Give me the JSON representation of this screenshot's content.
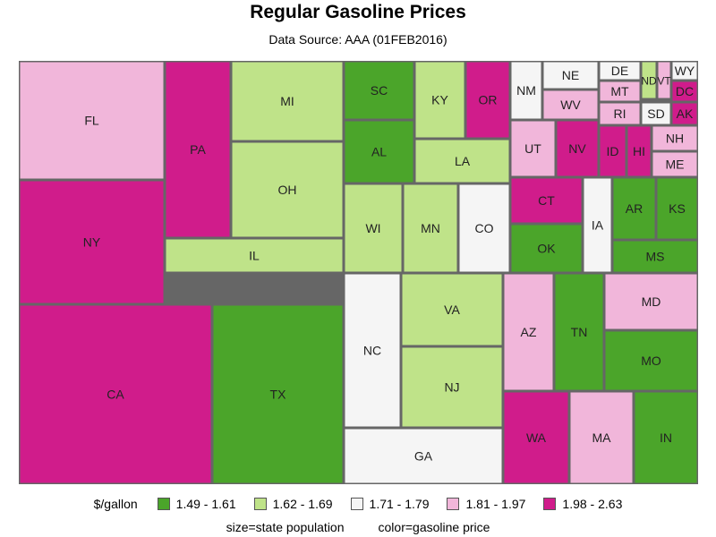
{
  "chart_data": {
    "type": "treemap",
    "title": "Regular Gasoline Prices",
    "subtitle": "Data Source: AAA (01FEB2016)",
    "legend": {
      "title": "$/gallon",
      "position": "bottom",
      "items": [
        {
          "label": "1.49 - 1.61",
          "color": "#4ba52a"
        },
        {
          "label": "1.62 - 1.69",
          "color": "#bfe389"
        },
        {
          "label": "1.71 - 1.79",
          "color": "#f5f5f5"
        },
        {
          "label": "1.81 - 1.97",
          "color": "#f1b6da"
        },
        {
          "label": "1.98 - 2.63",
          "color": "#d01c8b"
        }
      ]
    },
    "footnote": [
      "size=state population",
      "color=gasoline price"
    ],
    "tiles": [
      {
        "state": "FL",
        "price_bin": 3
      },
      {
        "state": "NY",
        "price_bin": 4
      },
      {
        "state": "CA",
        "price_bin": 4
      },
      {
        "state": "PA",
        "price_bin": 4
      },
      {
        "state": "MI",
        "price_bin": 1
      },
      {
        "state": "OH",
        "price_bin": 1
      },
      {
        "state": "IL",
        "price_bin": 1
      },
      {
        "state": "TX",
        "price_bin": 0
      },
      {
        "state": "SC",
        "price_bin": 0
      },
      {
        "state": "AL",
        "price_bin": 0
      },
      {
        "state": "KY",
        "price_bin": 1
      },
      {
        "state": "LA",
        "price_bin": 1
      },
      {
        "state": "OR",
        "price_bin": 4
      },
      {
        "state": "WI",
        "price_bin": 1
      },
      {
        "state": "MN",
        "price_bin": 1
      },
      {
        "state": "CO",
        "price_bin": 2
      },
      {
        "state": "NC",
        "price_bin": 2
      },
      {
        "state": "VA",
        "price_bin": 1
      },
      {
        "state": "NJ",
        "price_bin": 1
      },
      {
        "state": "GA",
        "price_bin": 2
      },
      {
        "state": "NM",
        "price_bin": 2
      },
      {
        "state": "NE",
        "price_bin": 2
      },
      {
        "state": "WV",
        "price_bin": 3
      },
      {
        "state": "DE",
        "price_bin": 2
      },
      {
        "state": "MT",
        "price_bin": 3
      },
      {
        "state": "RI",
        "price_bin": 3
      },
      {
        "state": "ND",
        "price_bin": 1
      },
      {
        "state": "VT",
        "price_bin": 3
      },
      {
        "state": "WY",
        "price_bin": 2
      },
      {
        "state": "DC",
        "price_bin": 4
      },
      {
        "state": "SD",
        "price_bin": 2
      },
      {
        "state": "AK",
        "price_bin": 4
      },
      {
        "state": "UT",
        "price_bin": 3
      },
      {
        "state": "NV",
        "price_bin": 4
      },
      {
        "state": "ID",
        "price_bin": 4
      },
      {
        "state": "HI",
        "price_bin": 4
      },
      {
        "state": "NH",
        "price_bin": 3
      },
      {
        "state": "ME",
        "price_bin": 3
      },
      {
        "state": "CT",
        "price_bin": 4
      },
      {
        "state": "IA",
        "price_bin": 2
      },
      {
        "state": "AR",
        "price_bin": 0
      },
      {
        "state": "KS",
        "price_bin": 0
      },
      {
        "state": "OK",
        "price_bin": 0
      },
      {
        "state": "MS",
        "price_bin": 0
      },
      {
        "state": "AZ",
        "price_bin": 3
      },
      {
        "state": "TN",
        "price_bin": 0
      },
      {
        "state": "MD",
        "price_bin": 3
      },
      {
        "state": "MO",
        "price_bin": 0
      },
      {
        "state": "WA",
        "price_bin": 4
      },
      {
        "state": "MA",
        "price_bin": 3
      },
      {
        "state": "IN",
        "price_bin": 0
      }
    ]
  }
}
